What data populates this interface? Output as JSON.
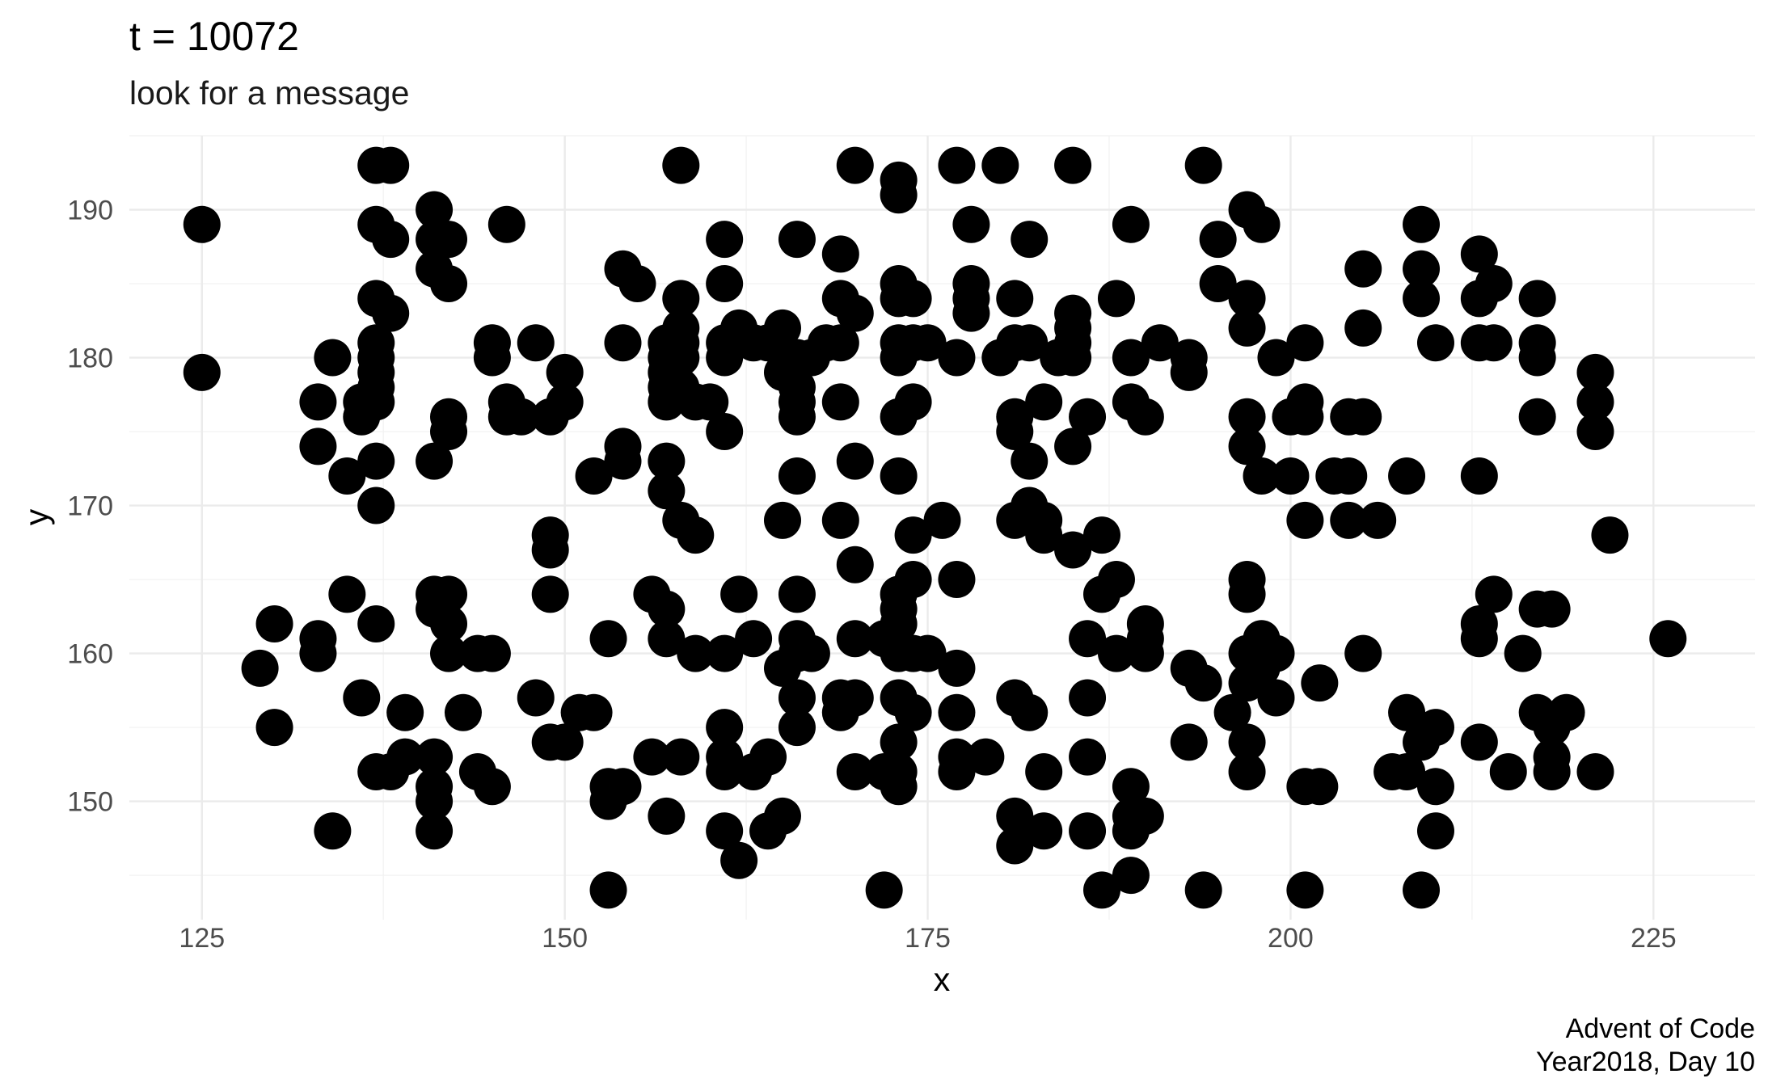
{
  "chart_data": {
    "type": "scatter",
    "title": "t =  10072",
    "subtitle": "look for a message",
    "xlabel": "x",
    "ylabel": "y",
    "caption": [
      "Advent of Code",
      "Year2018, Day 10"
    ],
    "xlim": [
      120,
      232
    ],
    "ylim": [
      142,
      195
    ],
    "x_ticks": [
      125,
      150,
      175,
      200,
      225
    ],
    "y_ticks": [
      150,
      160,
      170,
      180,
      190
    ],
    "grid": true,
    "point_color": "#000000",
    "points": [
      [
        125,
        189
      ],
      [
        125,
        179
      ],
      [
        129,
        159
      ],
      [
        130,
        162
      ],
      [
        130,
        155
      ],
      [
        133,
        177
      ],
      [
        133,
        174
      ],
      [
        133,
        161
      ],
      [
        133,
        160
      ],
      [
        134,
        180
      ],
      [
        134,
        148
      ],
      [
        135,
        172
      ],
      [
        135,
        164
      ],
      [
        136,
        177
      ],
      [
        136,
        176
      ],
      [
        136,
        157
      ],
      [
        137,
        193
      ],
      [
        137,
        189
      ],
      [
        137,
        184
      ],
      [
        137,
        181
      ],
      [
        137,
        180
      ],
      [
        137,
        179
      ],
      [
        137,
        178
      ],
      [
        137,
        177
      ],
      [
        137,
        173
      ],
      [
        137,
        170
      ],
      [
        137,
        162
      ],
      [
        137,
        152
      ],
      [
        138,
        193
      ],
      [
        138,
        188
      ],
      [
        138,
        183
      ],
      [
        138,
        152
      ],
      [
        139,
        156
      ],
      [
        139,
        153
      ],
      [
        141,
        190
      ],
      [
        141,
        188
      ],
      [
        141,
        186
      ],
      [
        141,
        173
      ],
      [
        141,
        164
      ],
      [
        141,
        163
      ],
      [
        141,
        153
      ],
      [
        141,
        151
      ],
      [
        141,
        150
      ],
      [
        141,
        148
      ],
      [
        142,
        188
      ],
      [
        142,
        185
      ],
      [
        142,
        176
      ],
      [
        142,
        175
      ],
      [
        142,
        164
      ],
      [
        142,
        162
      ],
      [
        142,
        160
      ],
      [
        143,
        156
      ],
      [
        144,
        160
      ],
      [
        144,
        152
      ],
      [
        145,
        181
      ],
      [
        145,
        180
      ],
      [
        145,
        160
      ],
      [
        145,
        151
      ],
      [
        146,
        189
      ],
      [
        146,
        177
      ],
      [
        146,
        176
      ],
      [
        147,
        176
      ],
      [
        148,
        181
      ],
      [
        148,
        157
      ],
      [
        149,
        176
      ],
      [
        149,
        168
      ],
      [
        149,
        167
      ],
      [
        149,
        164
      ],
      [
        149,
        154
      ],
      [
        150,
        179
      ],
      [
        150,
        177
      ],
      [
        150,
        154
      ],
      [
        151,
        156
      ],
      [
        152,
        172
      ],
      [
        152,
        156
      ],
      [
        153,
        161
      ],
      [
        153,
        151
      ],
      [
        153,
        150
      ],
      [
        153,
        144
      ],
      [
        154,
        186
      ],
      [
        154,
        181
      ],
      [
        154,
        174
      ],
      [
        154,
        173
      ],
      [
        154,
        151
      ],
      [
        155,
        185
      ],
      [
        156,
        164
      ],
      [
        156,
        153
      ],
      [
        157,
        181
      ],
      [
        157,
        180
      ],
      [
        157,
        179
      ],
      [
        157,
        178
      ],
      [
        157,
        177
      ],
      [
        157,
        173
      ],
      [
        157,
        171
      ],
      [
        157,
        163
      ],
      [
        157,
        161
      ],
      [
        157,
        149
      ],
      [
        158,
        193
      ],
      [
        158,
        184
      ],
      [
        158,
        182
      ],
      [
        158,
        181
      ],
      [
        158,
        180
      ],
      [
        158,
        178
      ],
      [
        158,
        169
      ],
      [
        158,
        153
      ],
      [
        159,
        177
      ],
      [
        159,
        168
      ],
      [
        159,
        160
      ],
      [
        160,
        177
      ],
      [
        161,
        188
      ],
      [
        161,
        185
      ],
      [
        161,
        181
      ],
      [
        161,
        180
      ],
      [
        161,
        175
      ],
      [
        161,
        160
      ],
      [
        161,
        155
      ],
      [
        161,
        153
      ],
      [
        161,
        152
      ],
      [
        161,
        148
      ],
      [
        162,
        182
      ],
      [
        162,
        164
      ],
      [
        162,
        146
      ],
      [
        163,
        181
      ],
      [
        163,
        161
      ],
      [
        163,
        152
      ],
      [
        164,
        181
      ],
      [
        164,
        153
      ],
      [
        164,
        148
      ],
      [
        165,
        182
      ],
      [
        165,
        179
      ],
      [
        165,
        169
      ],
      [
        165,
        159
      ],
      [
        165,
        149
      ],
      [
        166,
        188
      ],
      [
        166,
        180
      ],
      [
        166,
        178
      ],
      [
        166,
        177
      ],
      [
        166,
        176
      ],
      [
        166,
        172
      ],
      [
        166,
        164
      ],
      [
        166,
        161
      ],
      [
        166,
        160
      ],
      [
        166,
        157
      ],
      [
        166,
        155
      ],
      [
        167,
        180
      ],
      [
        167,
        160
      ],
      [
        168,
        181
      ],
      [
        169,
        187
      ],
      [
        169,
        184
      ],
      [
        169,
        181
      ],
      [
        169,
        177
      ],
      [
        169,
        169
      ],
      [
        169,
        157
      ],
      [
        169,
        156
      ],
      [
        170,
        193
      ],
      [
        170,
        183
      ],
      [
        170,
        173
      ],
      [
        170,
        166
      ],
      [
        170,
        161
      ],
      [
        170,
        157
      ],
      [
        170,
        152
      ],
      [
        172,
        161
      ],
      [
        172,
        152
      ],
      [
        172,
        144
      ],
      [
        173,
        192
      ],
      [
        173,
        191
      ],
      [
        173,
        185
      ],
      [
        173,
        184
      ],
      [
        173,
        181
      ],
      [
        173,
        180
      ],
      [
        173,
        176
      ],
      [
        173,
        172
      ],
      [
        173,
        164
      ],
      [
        173,
        163
      ],
      [
        173,
        162
      ],
      [
        173,
        160
      ],
      [
        173,
        157
      ],
      [
        173,
        154
      ],
      [
        173,
        152
      ],
      [
        173,
        151
      ],
      [
        174,
        184
      ],
      [
        174,
        181
      ],
      [
        174,
        177
      ],
      [
        174,
        168
      ],
      [
        174,
        165
      ],
      [
        174,
        160
      ],
      [
        174,
        156
      ],
      [
        175,
        181
      ],
      [
        175,
        160
      ],
      [
        176,
        169
      ],
      [
        177,
        193
      ],
      [
        177,
        180
      ],
      [
        177,
        165
      ],
      [
        177,
        159
      ],
      [
        177,
        156
      ],
      [
        177,
        153
      ],
      [
        177,
        152
      ],
      [
        178,
        189
      ],
      [
        178,
        185
      ],
      [
        178,
        184
      ],
      [
        178,
        183
      ],
      [
        179,
        153
      ],
      [
        180,
        193
      ],
      [
        180,
        180
      ],
      [
        181,
        184
      ],
      [
        181,
        181
      ],
      [
        181,
        176
      ],
      [
        181,
        175
      ],
      [
        181,
        169
      ],
      [
        181,
        157
      ],
      [
        181,
        149
      ],
      [
        181,
        147
      ],
      [
        182,
        188
      ],
      [
        182,
        181
      ],
      [
        182,
        173
      ],
      [
        182,
        170
      ],
      [
        182,
        156
      ],
      [
        183,
        177
      ],
      [
        183,
        169
      ],
      [
        183,
        168
      ],
      [
        183,
        152
      ],
      [
        183,
        148
      ],
      [
        184,
        180
      ],
      [
        185,
        193
      ],
      [
        185,
        183
      ],
      [
        185,
        182
      ],
      [
        185,
        181
      ],
      [
        185,
        180
      ],
      [
        185,
        174
      ],
      [
        185,
        167
      ],
      [
        186,
        176
      ],
      [
        186,
        161
      ],
      [
        186,
        157
      ],
      [
        186,
        153
      ],
      [
        186,
        148
      ],
      [
        187,
        168
      ],
      [
        187,
        164
      ],
      [
        187,
        144
      ],
      [
        188,
        184
      ],
      [
        188,
        165
      ],
      [
        188,
        160
      ],
      [
        189,
        189
      ],
      [
        189,
        180
      ],
      [
        189,
        177
      ],
      [
        189,
        151
      ],
      [
        189,
        149
      ],
      [
        189,
        148
      ],
      [
        189,
        145
      ],
      [
        190,
        176
      ],
      [
        190,
        162
      ],
      [
        190,
        161
      ],
      [
        190,
        160
      ],
      [
        190,
        149
      ],
      [
        191,
        181
      ],
      [
        193,
        180
      ],
      [
        193,
        179
      ],
      [
        193,
        159
      ],
      [
        193,
        154
      ],
      [
        194,
        193
      ],
      [
        194,
        158
      ],
      [
        194,
        144
      ],
      [
        195,
        188
      ],
      [
        195,
        185
      ],
      [
        196,
        156
      ],
      [
        197,
        190
      ],
      [
        197,
        184
      ],
      [
        197,
        182
      ],
      [
        197,
        176
      ],
      [
        197,
        174
      ],
      [
        197,
        165
      ],
      [
        197,
        164
      ],
      [
        197,
        160
      ],
      [
        197,
        158
      ],
      [
        197,
        154
      ],
      [
        197,
        152
      ],
      [
        198,
        189
      ],
      [
        198,
        172
      ],
      [
        198,
        161
      ],
      [
        198,
        159
      ],
      [
        199,
        180
      ],
      [
        199,
        160
      ],
      [
        199,
        157
      ],
      [
        200,
        176
      ],
      [
        200,
        172
      ],
      [
        201,
        181
      ],
      [
        201,
        177
      ],
      [
        201,
        176
      ],
      [
        201,
        169
      ],
      [
        201,
        151
      ],
      [
        201,
        144
      ],
      [
        202,
        158
      ],
      [
        202,
        151
      ],
      [
        203,
        172
      ],
      [
        204,
        176
      ],
      [
        204,
        172
      ],
      [
        204,
        169
      ],
      [
        205,
        186
      ],
      [
        205,
        182
      ],
      [
        205,
        176
      ],
      [
        205,
        160
      ],
      [
        206,
        169
      ],
      [
        207,
        152
      ],
      [
        208,
        172
      ],
      [
        208,
        156
      ],
      [
        208,
        152
      ],
      [
        209,
        189
      ],
      [
        209,
        186
      ],
      [
        209,
        184
      ],
      [
        209,
        154
      ],
      [
        209,
        144
      ],
      [
        210,
        181
      ],
      [
        210,
        155
      ],
      [
        210,
        151
      ],
      [
        210,
        148
      ],
      [
        213,
        187
      ],
      [
        213,
        184
      ],
      [
        213,
        181
      ],
      [
        213,
        172
      ],
      [
        213,
        162
      ],
      [
        213,
        161
      ],
      [
        213,
        154
      ],
      [
        214,
        185
      ],
      [
        214,
        181
      ],
      [
        214,
        164
      ],
      [
        215,
        152
      ],
      [
        216,
        160
      ],
      [
        217,
        184
      ],
      [
        217,
        181
      ],
      [
        217,
        180
      ],
      [
        217,
        176
      ],
      [
        217,
        163
      ],
      [
        217,
        156
      ],
      [
        218,
        163
      ],
      [
        218,
        155
      ],
      [
        218,
        153
      ],
      [
        218,
        152
      ],
      [
        219,
        156
      ],
      [
        221,
        179
      ],
      [
        221,
        177
      ],
      [
        221,
        175
      ],
      [
        221,
        152
      ],
      [
        222,
        168
      ],
      [
        226,
        161
      ]
    ]
  }
}
